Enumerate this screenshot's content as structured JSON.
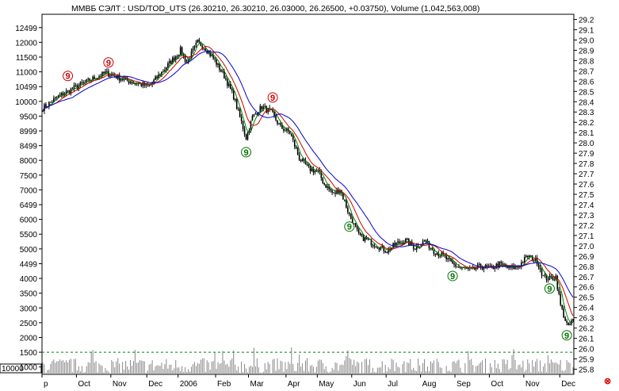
{
  "chart_data": {
    "type": "candlestick",
    "title": "ММВБ СЭЛТ : USD/TOD_UTS (26.30210, 26.30210, 26.03000, 26.26500, +0.03750), Volume (1,042,563,008)",
    "left_axis_ticks": [
      "12499",
      "12000",
      "11500",
      "11000",
      "10499",
      "10000",
      "9500",
      "8999",
      "8499",
      "8000",
      "7500",
      "7000",
      "6499",
      "6000",
      "5500",
      "5000",
      "4499",
      "4000",
      "3500",
      "3000",
      "2500",
      "2000",
      "1500",
      "1000"
    ],
    "left_axis_range": [
      750,
      12950
    ],
    "right_axis_ticks": [
      "29.2",
      "29.1",
      "29.0",
      "28.9",
      "28.8",
      "28.7",
      "28.6",
      "28.5",
      "28.4",
      "28.3",
      "28.2",
      "28.1",
      "28.0",
      "27.9",
      "27.8",
      "27.7",
      "27.6",
      "27.5",
      "27.4",
      "27.3",
      "27.2",
      "27.1",
      "27.0",
      "26.9",
      "26.8",
      "26.7",
      "26.6",
      "26.5",
      "26.4",
      "26.3",
      "26.2",
      "26.1",
      "26.0",
      "25.9",
      "25.8"
    ],
    "right_axis_range": [
      25.75,
      29.25
    ],
    "volume_box_label": "10000",
    "x_labels": [
      "p",
      "Oct",
      "Nov",
      "Dec",
      "2006",
      "Feb",
      "Mar",
      "Apr",
      "May",
      "Jun",
      "Jul",
      "Aug",
      "Sep",
      "Oct",
      "Nov",
      "Dec"
    ],
    "price_anchors": [
      [
        0,
        28.34
      ],
      [
        10,
        28.45
      ],
      [
        22,
        28.55
      ],
      [
        40,
        28.68
      ],
      [
        55,
        28.6
      ],
      [
        68,
        28.55
      ],
      [
        78,
        28.72
      ],
      [
        88,
        28.9
      ],
      [
        92,
        28.78
      ],
      [
        99,
        28.98
      ],
      [
        104,
        28.92
      ],
      [
        110,
        28.8
      ],
      [
        116,
        28.65
      ],
      [
        122,
        28.45
      ],
      [
        127,
        28.2
      ],
      [
        130,
        28.05
      ],
      [
        134,
        28.25
      ],
      [
        140,
        28.35
      ],
      [
        146,
        28.3
      ],
      [
        152,
        28.15
      ],
      [
        158,
        28.1
      ],
      [
        164,
        27.85
      ],
      [
        170,
        27.75
      ],
      [
        176,
        27.72
      ],
      [
        180,
        27.6
      ],
      [
        186,
        27.5
      ],
      [
        190,
        27.55
      ],
      [
        196,
        27.3
      ],
      [
        202,
        27.1
      ],
      [
        208,
        27.05
      ],
      [
        214,
        27.0
      ],
      [
        220,
        26.95
      ],
      [
        226,
        27.02
      ],
      [
        232,
        27.05
      ],
      [
        238,
        26.98
      ],
      [
        244,
        27.05
      ],
      [
        250,
        26.95
      ],
      [
        256,
        26.9
      ],
      [
        262,
        26.82
      ],
      [
        268,
        26.78
      ],
      [
        274,
        26.76
      ],
      [
        280,
        26.8
      ],
      [
        286,
        26.78
      ],
      [
        292,
        26.82
      ],
      [
        298,
        26.78
      ],
      [
        304,
        26.8
      ],
      [
        310,
        26.9
      ],
      [
        316,
        26.85
      ],
      [
        320,
        26.7
      ],
      [
        324,
        26.68
      ],
      [
        328,
        26.7
      ],
      [
        331,
        26.42
      ],
      [
        334,
        26.28
      ],
      [
        336,
        26.2
      ],
      [
        338,
        26.27
      ]
    ],
    "volume_ticks_left": [
      "1500",
      "1000"
    ],
    "series": [
      {
        "name": "",
        "color": "#008000"
      },
      {
        "name": "",
        "color": "#cc0000"
      },
      {
        "name": "",
        "color": "#0000cc"
      }
    ],
    "markers": [
      {
        "glyph": "9",
        "color": "#cc0000",
        "bar": 42
      },
      {
        "glyph": "9",
        "color": "#cc0000",
        "bar": 16
      },
      {
        "glyph": "9",
        "color": "#cc0000",
        "bar": 147
      },
      {
        "glyph": "9",
        "color": "#007000",
        "bar": 130
      },
      {
        "glyph": "9",
        "color": "#007000",
        "bar": 196
      },
      {
        "glyph": "9",
        "color": "#007000",
        "bar": 262
      },
      {
        "glyph": "9",
        "color": "#007000",
        "bar": 324
      },
      {
        "glyph": "9",
        "color": "#007000",
        "bar": 335
      }
    ],
    "volume_threshold_line": 1500,
    "grid": false
  },
  "corner_arrow_glyph": "⊗"
}
